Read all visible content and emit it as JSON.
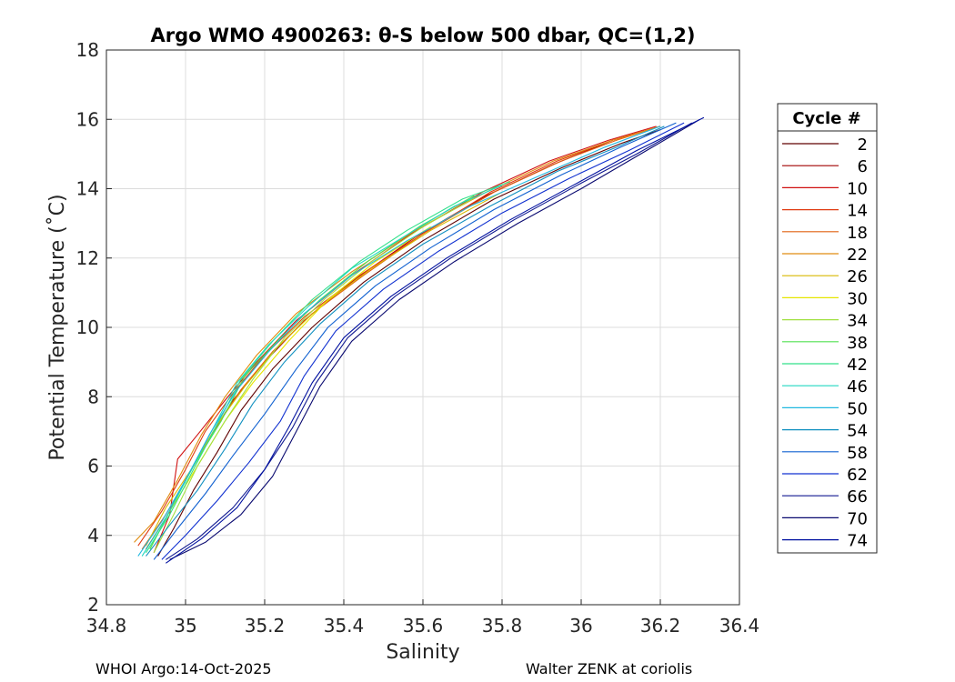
{
  "chart_data": {
    "type": "line",
    "title": "Argo WMO 4900263: θ-S below 500 dbar,  QC=(1,2)",
    "xlabel": "Salinity",
    "ylabel": "Potential Temperature (˚C)",
    "xlim": [
      34.8,
      36.4
    ],
    "ylim": [
      2,
      18
    ],
    "xticks": [
      "34.8",
      "35",
      "35.2",
      "35.4",
      "35.6",
      "35.8",
      "36",
      "36.2",
      "36.4"
    ],
    "yticks": [
      "2",
      "4",
      "6",
      "8",
      "10",
      "12",
      "14",
      "16",
      "18"
    ],
    "grid": true,
    "legend": {
      "title": "Cycle #",
      "placement": "right",
      "entries": [
        "2",
        "6",
        "10",
        "14",
        "18",
        "22",
        "26",
        "30",
        "34",
        "38",
        "42",
        "46",
        "50",
        "54",
        "58",
        "62",
        "66",
        "70",
        "74"
      ]
    },
    "series_colors": [
      "#600000",
      "#a00000",
      "#d01010",
      "#e03a10",
      "#e06010",
      "#e08c10",
      "#d8b800",
      "#e6e600",
      "#a0e040",
      "#50e050",
      "#30e08a",
      "#20d8c0",
      "#20b8e0",
      "#1090c0",
      "#1060d0",
      "#1030d0",
      "#101890",
      "#0a0a70",
      "#0010a0"
    ],
    "series": [
      {
        "name": "2",
        "x": [
          34.93,
          34.97,
          35.02,
          35.08,
          35.14,
          35.22,
          35.32,
          35.45,
          35.6,
          35.78,
          35.95,
          36.1,
          36.2
        ],
        "y": [
          3.4,
          4.2,
          5.3,
          6.4,
          7.6,
          8.8,
          10.0,
          11.3,
          12.5,
          13.7,
          14.6,
          15.3,
          15.7
        ]
      },
      {
        "name": "6",
        "x": [
          34.9,
          34.95,
          35.0,
          35.06,
          35.12,
          35.2,
          35.3,
          35.43,
          35.58,
          35.76,
          35.93,
          36.08,
          36.2
        ],
        "y": [
          3.6,
          4.5,
          5.6,
          6.8,
          7.9,
          9.0,
          10.2,
          11.4,
          12.6,
          13.8,
          14.7,
          15.4,
          15.8
        ]
      },
      {
        "name": "10",
        "x": [
          34.92,
          34.96,
          34.98,
          35.03,
          35.1,
          35.18,
          35.28,
          35.42,
          35.57,
          35.75,
          35.92,
          36.07,
          36.19
        ],
        "y": [
          3.5,
          4.6,
          6.2,
          6.9,
          7.9,
          9.0,
          10.2,
          11.5,
          12.7,
          13.9,
          14.8,
          15.4,
          15.8
        ]
      },
      {
        "name": "14",
        "x": [
          34.88,
          34.94,
          35.0,
          35.05,
          35.12,
          35.2,
          35.3,
          35.44,
          35.6,
          35.77,
          35.94,
          36.08,
          36.2
        ],
        "y": [
          3.7,
          4.7,
          5.9,
          7.0,
          8.1,
          9.2,
          10.3,
          11.5,
          12.7,
          13.9,
          14.8,
          15.4,
          15.8
        ]
      },
      {
        "name": "18",
        "x": [
          34.89,
          34.95,
          35.01,
          35.07,
          35.14,
          35.22,
          35.32,
          35.45,
          35.6,
          35.78,
          35.95,
          36.09,
          36.2
        ],
        "y": [
          3.6,
          4.6,
          5.8,
          7.0,
          8.2,
          9.3,
          10.4,
          11.5,
          12.7,
          13.9,
          14.8,
          15.4,
          15.8
        ]
      },
      {
        "name": "22",
        "x": [
          34.87,
          34.92,
          34.98,
          35.04,
          35.1,
          35.18,
          35.28,
          35.42,
          35.58,
          35.76,
          35.93,
          36.08,
          36.2
        ],
        "y": [
          3.8,
          4.4,
          5.6,
          6.9,
          8.0,
          9.2,
          10.4,
          11.6,
          12.8,
          13.9,
          14.8,
          15.4,
          15.8
        ]
      },
      {
        "name": "26",
        "x": [
          34.9,
          34.95,
          35.02,
          35.08,
          35.15,
          35.23,
          35.34,
          35.47,
          35.62,
          35.8
        ],
        "y": [
          3.7,
          4.8,
          6.0,
          7.2,
          8.3,
          9.4,
          10.6,
          11.7,
          12.8,
          13.9
        ]
      },
      {
        "name": "30",
        "x": [
          34.91,
          34.96,
          35.03,
          35.1,
          35.17,
          35.26,
          35.36,
          35.48,
          35.62
        ],
        "y": [
          3.6,
          4.7,
          6.0,
          7.3,
          8.4,
          9.6,
          10.8,
          11.9,
          12.9
        ]
      },
      {
        "name": "34",
        "x": [
          34.92,
          34.97,
          35.03,
          35.1,
          35.17,
          35.25,
          35.35,
          35.47,
          35.6,
          35.74
        ],
        "y": [
          3.5,
          4.6,
          6.0,
          7.3,
          8.5,
          9.7,
          10.8,
          11.9,
          12.9,
          13.8
        ]
      },
      {
        "name": "38",
        "x": [
          34.91,
          34.96,
          35.02,
          35.09,
          35.15,
          35.24,
          35.34,
          35.46,
          35.59,
          35.73
        ],
        "y": [
          3.6,
          4.7,
          6.0,
          7.3,
          8.6,
          9.7,
          10.8,
          11.9,
          12.9,
          13.8
        ]
      },
      {
        "name": "42",
        "x": [
          34.9,
          34.96,
          35.02,
          35.08,
          35.14,
          35.22,
          35.32,
          35.44,
          35.56,
          35.7,
          35.82
        ],
        "y": [
          3.5,
          4.6,
          5.9,
          7.2,
          8.5,
          9.6,
          10.8,
          11.9,
          12.8,
          13.7,
          14.2
        ]
      },
      {
        "name": "46",
        "x": [
          34.89,
          34.95,
          35.01,
          35.07,
          35.13,
          35.21,
          35.31,
          35.42,
          35.55,
          35.68,
          35.8
        ],
        "y": [
          3.4,
          4.5,
          5.8,
          7.1,
          8.4,
          9.5,
          10.6,
          11.7,
          12.6,
          13.5,
          14.1
        ]
      },
      {
        "name": "50",
        "x": [
          34.88,
          34.94,
          35.0,
          35.06,
          35.13,
          35.21,
          35.3,
          35.42,
          35.56,
          35.72,
          35.9,
          36.06,
          36.2
        ],
        "y": [
          3.4,
          4.4,
          5.6,
          6.9,
          8.2,
          9.3,
          10.4,
          11.5,
          12.5,
          13.5,
          14.4,
          15.2,
          15.8
        ]
      },
      {
        "name": "54",
        "x": [
          34.9,
          34.96,
          35.03,
          35.1,
          35.17,
          35.25,
          35.34,
          35.46,
          35.6,
          35.77,
          35.94,
          36.09,
          36.21
        ],
        "y": [
          3.4,
          4.3,
          5.3,
          6.5,
          7.8,
          9.0,
          10.1,
          11.3,
          12.4,
          13.5,
          14.5,
          15.2,
          15.8
        ]
      },
      {
        "name": "58",
        "x": [
          34.92,
          34.98,
          35.05,
          35.12,
          35.2,
          35.28,
          35.36,
          35.48,
          35.62,
          35.78,
          35.95,
          36.1,
          36.24
        ],
        "y": [
          3.3,
          4.2,
          5.2,
          6.3,
          7.5,
          8.8,
          10.0,
          11.2,
          12.3,
          13.4,
          14.4,
          15.2,
          15.9
        ]
      },
      {
        "name": "62",
        "x": [
          34.94,
          35.0,
          35.08,
          35.16,
          35.24,
          35.3,
          35.38,
          35.5,
          35.64,
          35.8,
          35.97,
          36.12,
          36.26
        ],
        "y": [
          3.3,
          4.0,
          5.0,
          6.1,
          7.3,
          8.6,
          9.9,
          11.1,
          12.2,
          13.3,
          14.3,
          15.1,
          15.9
        ]
      },
      {
        "name": "66",
        "x": [
          34.95,
          35.03,
          35.12,
          35.2,
          35.27,
          35.33,
          35.41,
          35.53,
          35.67,
          35.83,
          35.99,
          36.14,
          36.28
        ],
        "y": [
          3.3,
          3.9,
          4.8,
          5.9,
          7.1,
          8.4,
          9.7,
          10.9,
          12.0,
          13.1,
          14.1,
          15.0,
          15.9
        ]
      },
      {
        "name": "70",
        "x": [
          34.96,
          35.05,
          35.14,
          35.22,
          35.28,
          35.34,
          35.42,
          35.54,
          35.68,
          35.84,
          36.0,
          36.15,
          36.3
        ],
        "y": [
          3.3,
          3.8,
          4.6,
          5.7,
          7.0,
          8.3,
          9.6,
          10.8,
          11.9,
          13.0,
          14.0,
          15.0,
          16.0
        ]
      },
      {
        "name": "74",
        "x": [
          34.95,
          35.04,
          35.13,
          35.2,
          35.26,
          35.32,
          35.4,
          35.52,
          35.66,
          35.82,
          35.98,
          36.14,
          36.31
        ],
        "y": [
          3.2,
          3.9,
          4.8,
          5.9,
          7.1,
          8.4,
          9.7,
          10.9,
          12.0,
          13.1,
          14.1,
          15.1,
          16.05
        ]
      }
    ]
  },
  "footer": {
    "left": "WHOI Argo:14-Oct-2025",
    "right": "Walter ZENK at coriolis"
  }
}
